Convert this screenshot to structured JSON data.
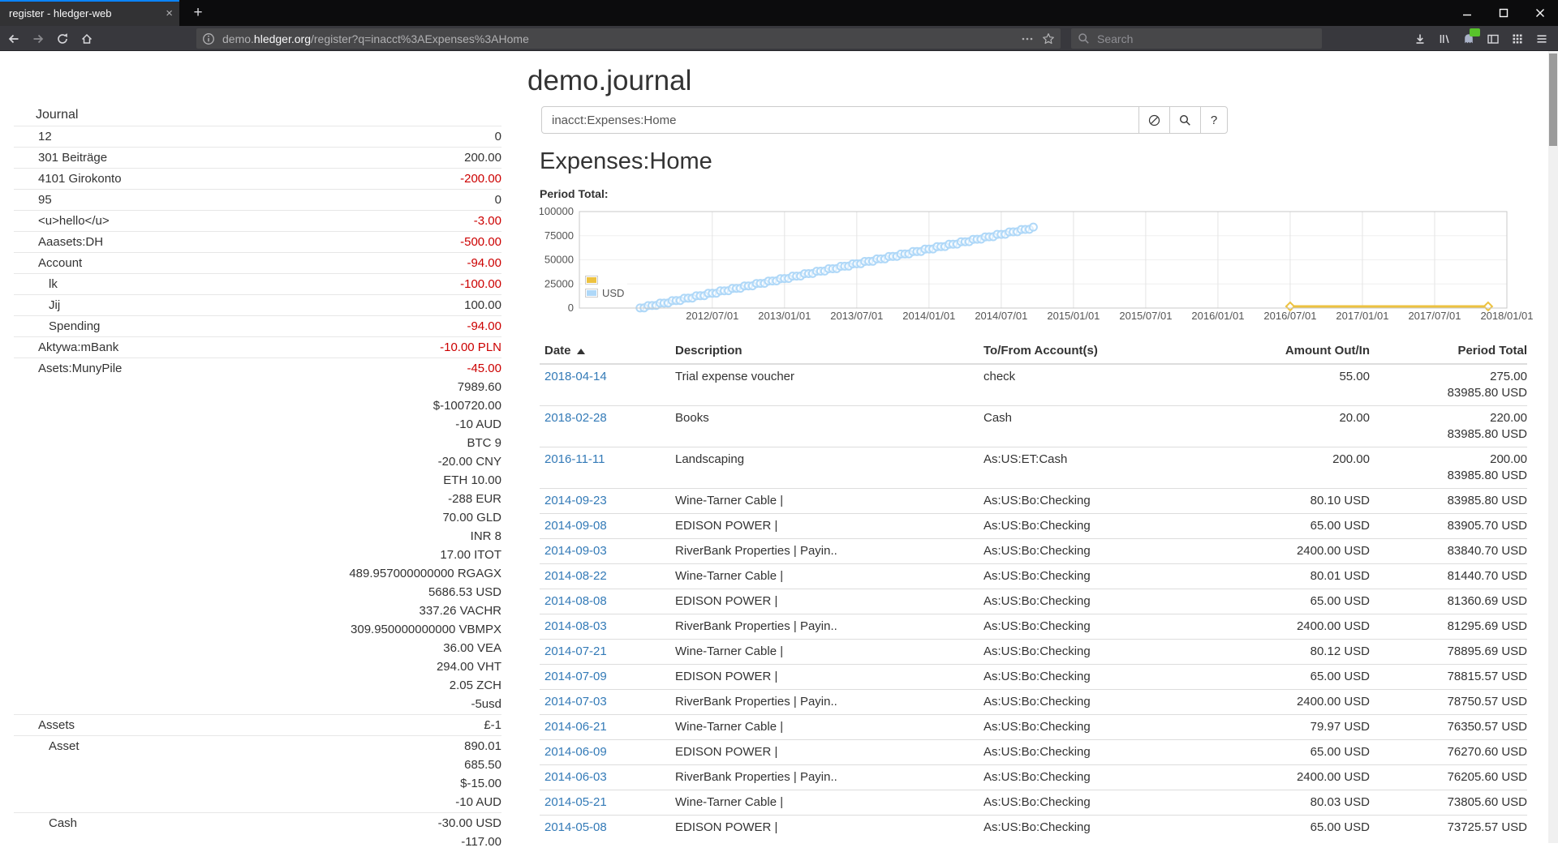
{
  "browser": {
    "tab_title": "register - hledger-web",
    "url_prefix": "demo.",
    "url_domain": "hledger.org",
    "url_path": "/register?q=inacct%3AExpenses%3AHome",
    "search_placeholder": "Search"
  },
  "icons": {
    "tab_close_glyph": "×",
    "new_tab_glyph": "+"
  },
  "page": {
    "title": "demo.journal",
    "search_value": "inacct:Expenses:Home",
    "help_label": "?",
    "heading": "Expenses:Home",
    "period_total_label": "Period Total:"
  },
  "sidebar": {
    "heading": "Journal",
    "items": [
      {
        "name": "12",
        "indent": 0,
        "amounts": [
          {
            "text": "0"
          }
        ]
      },
      {
        "name": "301 Beiträge",
        "indent": 0,
        "amounts": [
          {
            "text": "200.00"
          }
        ]
      },
      {
        "name": "4101 Girokonto",
        "indent": 0,
        "amounts": [
          {
            "text": "-200.00",
            "neg": true
          }
        ]
      },
      {
        "name": "95",
        "indent": 0,
        "amounts": [
          {
            "text": "0"
          }
        ]
      },
      {
        "name": "<u>hello</u>",
        "indent": 0,
        "amounts": [
          {
            "text": "-3.00",
            "neg": true
          }
        ]
      },
      {
        "name": "Aaasets:DH",
        "indent": 0,
        "amounts": [
          {
            "text": "-500.00",
            "neg": true
          }
        ]
      },
      {
        "name": "Account",
        "indent": 0,
        "amounts": [
          {
            "text": "-94.00",
            "neg": true
          }
        ]
      },
      {
        "name": "lk",
        "indent": 1,
        "amounts": [
          {
            "text": "-100.00",
            "neg": true
          }
        ]
      },
      {
        "name": "Jij",
        "indent": 1,
        "amounts": [
          {
            "text": "100.00"
          }
        ]
      },
      {
        "name": "Spending",
        "indent": 1,
        "amounts": [
          {
            "text": "-94.00",
            "neg": true
          }
        ]
      },
      {
        "name": "Aktywa:mBank",
        "indent": 0,
        "amounts": [
          {
            "text": "-10.00 PLN",
            "neg": true
          }
        ]
      },
      {
        "name": "Asets:MunyPile",
        "indent": 0,
        "amounts": [
          {
            "text": "-45.00",
            "neg": true
          },
          {
            "text": "7989.60"
          },
          {
            "text": "$-100720.00"
          },
          {
            "text": "-10 AUD"
          },
          {
            "text": "BTC 9"
          },
          {
            "text": "-20.00 CNY"
          },
          {
            "text": "ETH 10.00"
          },
          {
            "text": "-288 EUR"
          },
          {
            "text": "70.00 GLD"
          },
          {
            "text": "INR 8"
          },
          {
            "text": "17.00 ITOT"
          },
          {
            "text": "489.957000000000 RGAGX"
          },
          {
            "text": "5686.53 USD"
          },
          {
            "text": "337.26 VACHR"
          },
          {
            "text": "309.950000000000 VBMPX"
          },
          {
            "text": "36.00 VEA"
          },
          {
            "text": "294.00 VHT"
          },
          {
            "text": "2.05 ZCH"
          },
          {
            "text": "-5usd"
          }
        ]
      },
      {
        "name": "Assets",
        "indent": 0,
        "amounts": [
          {
            "text": "£-1"
          }
        ]
      },
      {
        "name": "Asset",
        "indent": 1,
        "amounts": [
          {
            "text": "890.01"
          },
          {
            "text": "685.50"
          },
          {
            "text": "$-15.00"
          },
          {
            "text": "-10 AUD"
          }
        ]
      },
      {
        "name": "Cash",
        "indent": 1,
        "amounts": [
          {
            "text": "-30.00 USD"
          },
          {
            "text": "-117.00"
          }
        ]
      }
    ]
  },
  "register": {
    "columns": [
      "Date",
      "Description",
      "To/From Account(s)",
      "Amount Out/In",
      "Period Total"
    ],
    "rows": [
      {
        "date": "2018-04-14",
        "desc": "Trial expense voucher",
        "account": "check",
        "amount": "55.00",
        "total": [
          "275.00",
          "83985.80 USD"
        ]
      },
      {
        "date": "2018-02-28",
        "desc": "Books",
        "account": "Cash",
        "amount": "20.00",
        "total": [
          "220.00",
          "83985.80 USD"
        ]
      },
      {
        "date": "2016-11-11",
        "desc": "Landscaping",
        "account": "As:US:ET:Cash",
        "amount": "200.00",
        "total": [
          "200.00",
          "83985.80 USD"
        ]
      },
      {
        "date": "2014-09-23",
        "desc": "Wine-Tarner Cable |",
        "account": "As:US:Bo:Checking",
        "amount": "80.10 USD",
        "total": [
          "83985.80 USD"
        ]
      },
      {
        "date": "2014-09-08",
        "desc": "EDISON POWER |",
        "account": "As:US:Bo:Checking",
        "amount": "65.00 USD",
        "total": [
          "83905.70 USD"
        ]
      },
      {
        "date": "2014-09-03",
        "desc": "RiverBank Properties | Payin..",
        "account": "As:US:Bo:Checking",
        "amount": "2400.00 USD",
        "total": [
          "83840.70 USD"
        ]
      },
      {
        "date": "2014-08-22",
        "desc": "Wine-Tarner Cable |",
        "account": "As:US:Bo:Checking",
        "amount": "80.01 USD",
        "total": [
          "81440.70 USD"
        ]
      },
      {
        "date": "2014-08-08",
        "desc": "EDISON POWER |",
        "account": "As:US:Bo:Checking",
        "amount": "65.00 USD",
        "total": [
          "81360.69 USD"
        ]
      },
      {
        "date": "2014-08-03",
        "desc": "RiverBank Properties | Payin..",
        "account": "As:US:Bo:Checking",
        "amount": "2400.00 USD",
        "total": [
          "81295.69 USD"
        ]
      },
      {
        "date": "2014-07-21",
        "desc": "Wine-Tarner Cable |",
        "account": "As:US:Bo:Checking",
        "amount": "80.12 USD",
        "total": [
          "78895.69 USD"
        ]
      },
      {
        "date": "2014-07-09",
        "desc": "EDISON POWER |",
        "account": "As:US:Bo:Checking",
        "amount": "65.00 USD",
        "total": [
          "78815.57 USD"
        ]
      },
      {
        "date": "2014-07-03",
        "desc": "RiverBank Properties | Payin..",
        "account": "As:US:Bo:Checking",
        "amount": "2400.00 USD",
        "total": [
          "78750.57 USD"
        ]
      },
      {
        "date": "2014-06-21",
        "desc": "Wine-Tarner Cable |",
        "account": "As:US:Bo:Checking",
        "amount": "79.97 USD",
        "total": [
          "76350.57 USD"
        ]
      },
      {
        "date": "2014-06-09",
        "desc": "EDISON POWER |",
        "account": "As:US:Bo:Checking",
        "amount": "65.00 USD",
        "total": [
          "76270.60 USD"
        ]
      },
      {
        "date": "2014-06-03",
        "desc": "RiverBank Properties | Payin..",
        "account": "As:US:Bo:Checking",
        "amount": "2400.00 USD",
        "total": [
          "76205.60 USD"
        ]
      },
      {
        "date": "2014-05-21",
        "desc": "Wine-Tarner Cable |",
        "account": "As:US:Bo:Checking",
        "amount": "80.03 USD",
        "total": [
          "73805.60 USD"
        ]
      },
      {
        "date": "2014-05-08",
        "desc": "EDISON POWER |",
        "account": "As:US:Bo:Checking",
        "amount": "65.00 USD",
        "total": [
          "73725.57 USD"
        ]
      }
    ]
  },
  "chart_data": {
    "type": "scatter",
    "title": "Period Total:",
    "ylim": [
      0,
      100000
    ],
    "yticks": [
      0,
      25000,
      50000,
      75000,
      100000
    ],
    "xticks": [
      "2012/07/01",
      "2013/01/01",
      "2013/07/01",
      "2014/01/01",
      "2014/07/01",
      "2015/01/01",
      "2015/07/01",
      "2016/01/01",
      "2016/07/01",
      "2017/01/01",
      "2017/07/01",
      "2018/01/01"
    ],
    "xtick_start_yearfrac": 2012.5,
    "xtick_step_yearfrac": 0.5,
    "x_range_yearfrac": [
      2011.58,
      2018.0
    ],
    "grid": true,
    "legend_position": "inside-left",
    "series": [
      {
        "name": "",
        "color": "#edc240",
        "marker": "diamond",
        "mode": "line+markers",
        "x_yearfrac": [
          2016.5,
          2017.87
        ],
        "values": [
          0,
          0
        ]
      },
      {
        "name": "USD",
        "color": "#afd8f8",
        "marker": "circle",
        "mode": "markers",
        "x_start_yearfrac": 2012.0,
        "x_step_yearfrac": 0.027778,
        "values": [
          65,
          145,
          2545,
          2610,
          2690,
          5090,
          5155,
          5235,
          7635,
          7700,
          7780,
          10180,
          10245,
          10325,
          12725,
          12790,
          12870,
          15270,
          15335,
          15415,
          17815,
          17880,
          17960,
          20360,
          20425,
          20505,
          22905,
          22970,
          23050,
          25450,
          25515,
          25595,
          27995,
          28060,
          28140,
          30540,
          30605,
          30685,
          33085,
          33150,
          33230,
          35630,
          35695,
          35775,
          38175,
          38240,
          38320,
          40720,
          40785,
          40865,
          43265,
          43330,
          43410,
          45810,
          45875,
          45955,
          48355,
          48420,
          48500,
          50900,
          50965,
          51045,
          53445,
          53510,
          53590,
          55990,
          56055,
          56135,
          58535,
          58600,
          58680,
          61080,
          61145,
          61225,
          63625,
          63690,
          63770,
          66170,
          66235,
          66315,
          68715,
          68780,
          68860,
          71260,
          71325,
          71405,
          73805,
          73870,
          73950,
          76350,
          76415,
          76495,
          78895,
          78960,
          79040,
          81440,
          81505,
          81585,
          83985
        ]
      }
    ]
  }
}
